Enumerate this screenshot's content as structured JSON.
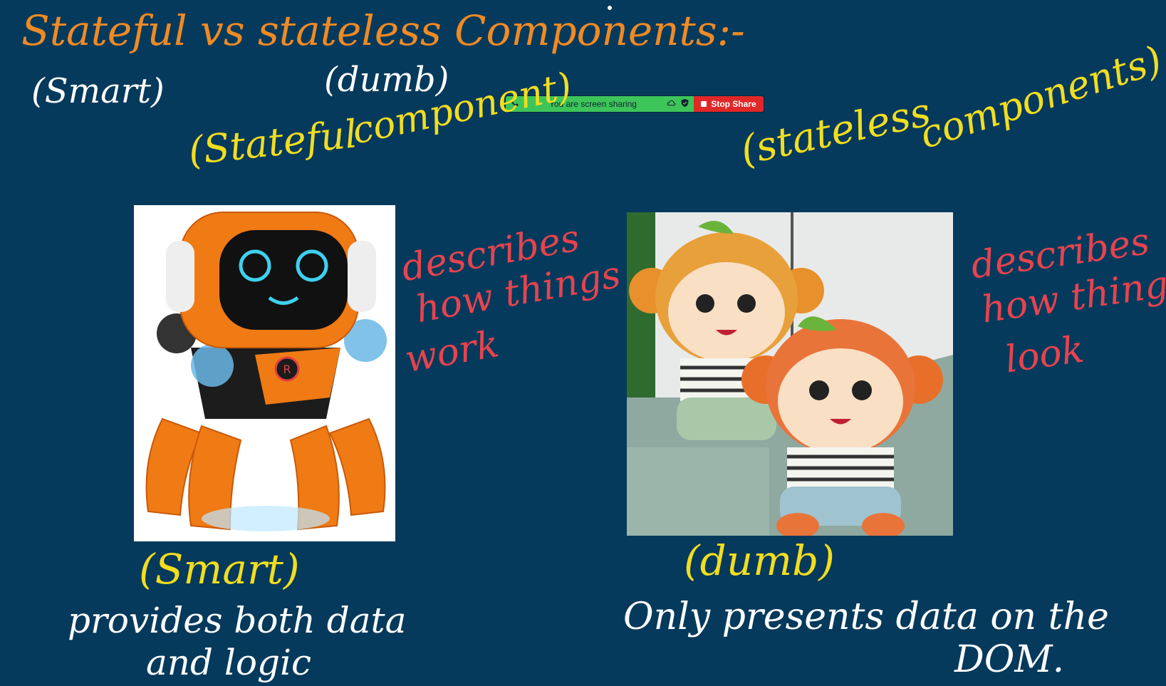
{
  "title": "Stateful vs stateless Components:-",
  "top_labels": {
    "smart": "(Smart)",
    "dumb": "(dumb)"
  },
  "screen_share": {
    "message": "You are screen sharing",
    "stop_label": "Stop Share",
    "colors": {
      "bar": "#3dc55a",
      "stop": "#e02828"
    },
    "icons": [
      "phone-icon",
      "cloud-icon",
      "shield-check-icon",
      "stop-square-icon"
    ]
  },
  "left": {
    "heading_part1": "(Stateful",
    "heading_part2": "component)",
    "image": "orange-robot-toy",
    "note_lines": [
      "describes",
      "how things",
      "work"
    ],
    "label": "(Smart)",
    "desc_lines": [
      "provides both data",
      "and logic"
    ]
  },
  "right": {
    "heading_part1": "(stateless",
    "heading_part2": "components)",
    "image": "plush-monkey-toys",
    "note_lines": [
      "describes",
      "how things",
      "look"
    ],
    "label": "(dumb)",
    "desc_lines": [
      "Only presents data on the",
      "DOM."
    ]
  },
  "colors": {
    "background": "#063a5c",
    "title": "#f08a24",
    "headings": "#f2dd1f",
    "notes": "#e8434e",
    "text": "#ffffff"
  }
}
